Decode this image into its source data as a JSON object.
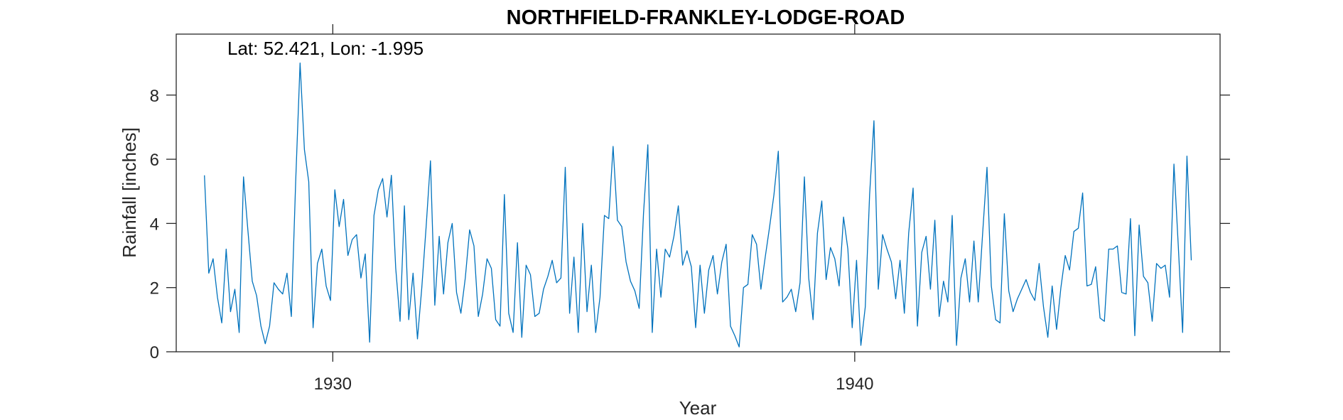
{
  "chart_data": {
    "type": "line",
    "title": "NORTHFIELD-FRANKLEY-LODGE-ROAD",
    "annotation": "Lat: 52.421, Lon: -1.995",
    "xlabel": "Year",
    "ylabel": "Rainfall [inches]",
    "xlim": [
      1927,
      1947
    ],
    "ylim": [
      0,
      9.9
    ],
    "xticks": [
      1930,
      1940
    ],
    "yticks": [
      0,
      2,
      4,
      6,
      8
    ],
    "grid": false,
    "line_color": "#0072BD",
    "series": [
      {
        "x_start_year": 1927.54,
        "x_step_years": 0.0833,
        "values": [
          5.5,
          2.45,
          2.9,
          1.7,
          0.9,
          3.2,
          1.25,
          1.95,
          0.6,
          5.45,
          3.8,
          2.2,
          1.75,
          0.8,
          0.25,
          0.8,
          2.15,
          1.95,
          1.8,
          2.45,
          1.1,
          5.3,
          9.0,
          6.3,
          5.3,
          0.75,
          2.75,
          3.2,
          2.05,
          1.6,
          5.05,
          3.9,
          4.75,
          3.0,
          3.5,
          3.65,
          2.3,
          3.05,
          0.3,
          4.25,
          5.05,
          5.4,
          4.2,
          5.5,
          2.6,
          0.95,
          4.55,
          1.0,
          2.45,
          0.4,
          2.0,
          3.9,
          5.95,
          1.45,
          3.6,
          1.8,
          3.4,
          4.0,
          1.85,
          1.2,
          2.3,
          3.8,
          3.3,
          1.1,
          1.8,
          2.9,
          2.6,
          1.0,
          0.8,
          4.9,
          1.2,
          0.6,
          3.4,
          0.45,
          2.7,
          2.4,
          1.1,
          1.2,
          1.95,
          2.35,
          2.85,
          2.15,
          2.3,
          5.75,
          1.2,
          2.95,
          0.6,
          4.0,
          1.25,
          2.7,
          0.6,
          1.7,
          4.25,
          4.15,
          6.4,
          4.1,
          3.9,
          2.8,
          2.2,
          1.9,
          1.35,
          4.3,
          6.45,
          0.6,
          3.2,
          1.7,
          3.2,
          2.95,
          3.6,
          4.55,
          2.7,
          3.15,
          2.65,
          0.75,
          2.7,
          1.2,
          2.55,
          3.0,
          1.8,
          2.8,
          3.35,
          0.8,
          0.5,
          0.15,
          2.0,
          2.1,
          3.65,
          3.35,
          1.95,
          2.95,
          3.9,
          4.9,
          6.25,
          1.55,
          1.7,
          1.95,
          1.25,
          2.15,
          5.45,
          2.3,
          1.0,
          3.7,
          4.7,
          2.25,
          3.25,
          2.9,
          2.05,
          4.2,
          3.2,
          0.75,
          2.85,
          0.2,
          1.4,
          4.9,
          7.2,
          1.95,
          3.65,
          3.2,
          2.8,
          1.65,
          2.85,
          1.2,
          3.7,
          5.1,
          0.8,
          3.1,
          3.6,
          1.95,
          4.1,
          1.1,
          2.2,
          1.55,
          4.25,
          0.2,
          2.3,
          2.9,
          1.55,
          3.45,
          1.55,
          3.7,
          5.75,
          2.05,
          1.0,
          0.9,
          4.3,
          1.9,
          1.25,
          1.65,
          1.95,
          2.25,
          1.85,
          1.6,
          2.75,
          1.4,
          0.45,
          2.05,
          0.7,
          2.0,
          3.0,
          2.55,
          3.75,
          3.85,
          4.95,
          2.05,
          2.1,
          2.65,
          1.05,
          0.95,
          3.2,
          3.2,
          3.3,
          1.85,
          1.8,
          4.15,
          0.5,
          3.95,
          2.35,
          2.15,
          0.95,
          2.75,
          2.6,
          2.7,
          1.7,
          5.85,
          3.3,
          0.6,
          6.1,
          2.85
        ]
      }
    ]
  }
}
